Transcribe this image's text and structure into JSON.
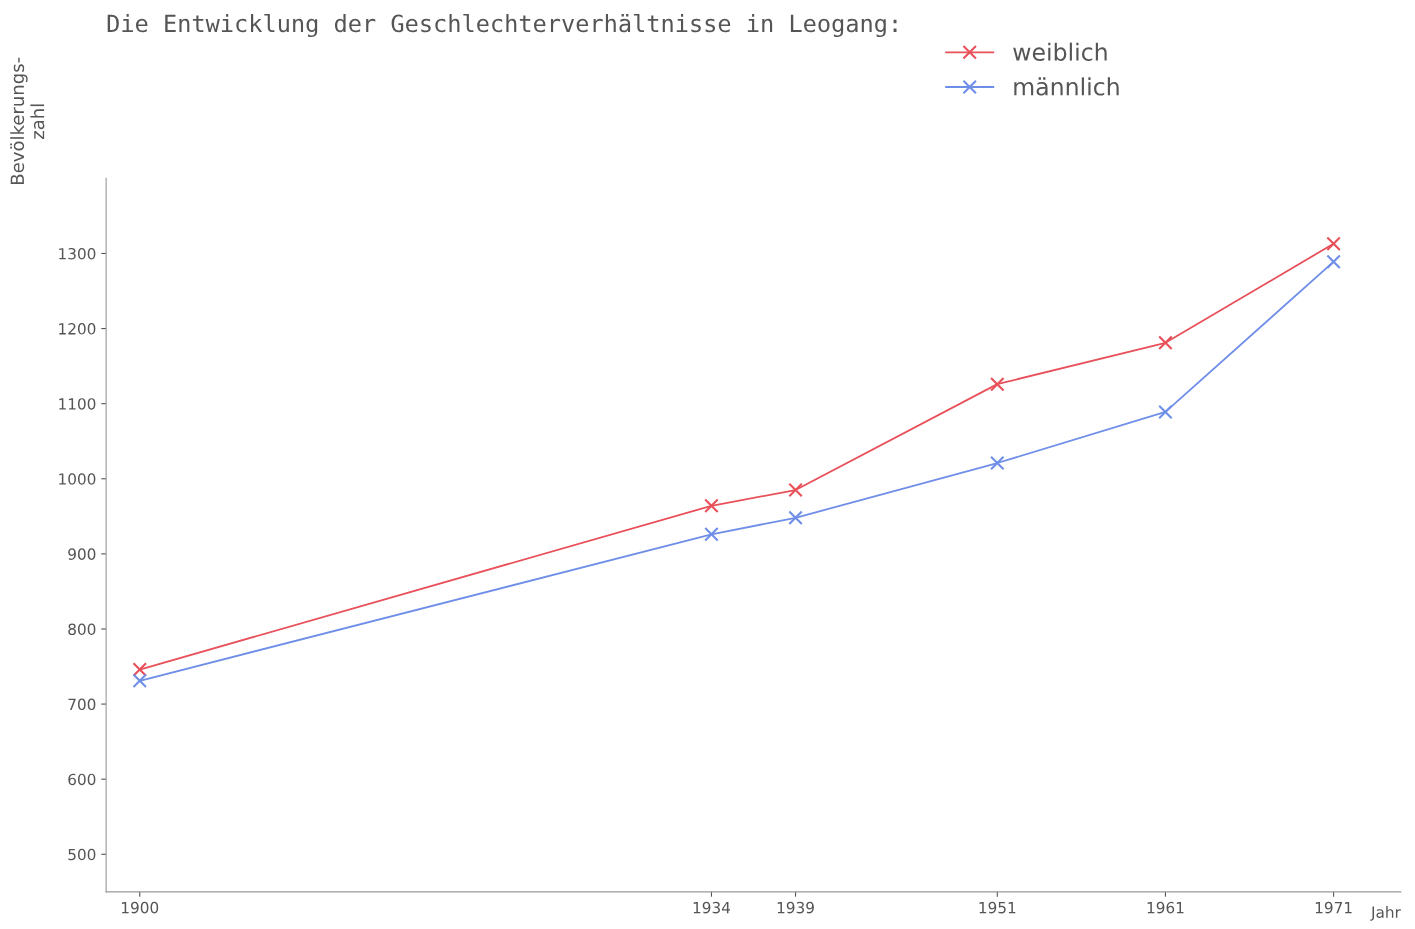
{
  "chart_data": {
    "type": "line",
    "title": "Die Entwicklung der Geschlechterverhältnisse in Leogang:",
    "xlabel": "Jahr",
    "ylabel": "Bevölkerungs-\nzahl",
    "x": [
      1900,
      1934,
      1939,
      1951,
      1961,
      1971
    ],
    "series": [
      {
        "name": "weiblich",
        "color": "#e8505a",
        "values": [
          746,
          964,
          985,
          1126,
          1181,
          1313
        ]
      },
      {
        "name": "männlich",
        "color": "#6f8ee8",
        "values": [
          731,
          926,
          948,
          1021,
          1089,
          1289
        ]
      }
    ],
    "xlim": [
      1898,
      1975
    ],
    "xticks": [
      1900,
      1934,
      1939,
      1951,
      1961,
      1971
    ],
    "ylim": [
      450,
      1400
    ],
    "yticks": [
      500,
      600,
      700,
      800,
      900,
      1000,
      1100,
      1200,
      1300
    ],
    "grid": false,
    "legend": "top right",
    "marker": "cross",
    "line_style": "solid"
  }
}
